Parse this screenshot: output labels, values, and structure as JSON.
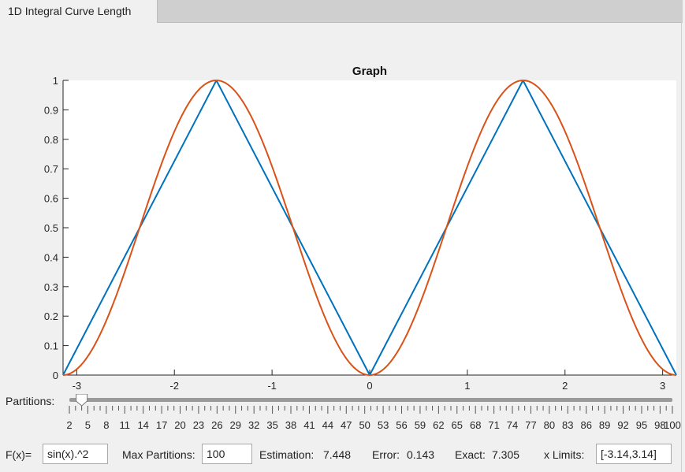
{
  "window": {
    "tab_title": "1D Integral Curve Length"
  },
  "chart_data": {
    "type": "line",
    "title": "Graph",
    "xlim": [
      -3.14,
      3.14
    ],
    "ylim": [
      0,
      1
    ],
    "x_ticks": [
      "-3",
      "-2",
      "-1",
      "0",
      "1",
      "2",
      "3"
    ],
    "y_ticks": [
      "0",
      "0.1",
      "0.2",
      "0.3",
      "0.4",
      "0.5",
      "0.6",
      "0.7",
      "0.8",
      "0.9",
      "1"
    ],
    "grid": false,
    "series": [
      {
        "color": "#0072BD",
        "x": [
          -3.14,
          -1.57,
          0,
          1.57,
          3.14
        ],
        "y": [
          0,
          1,
          0,
          1,
          0
        ]
      },
      {
        "color": "#D95319",
        "function": "sin(x).^2",
        "x": [
          -3.14,
          -2.75,
          -2.36,
          -1.96,
          -1.57,
          -1.18,
          -0.79,
          -0.39,
          0,
          0.39,
          0.79,
          1.18,
          1.57,
          1.96,
          2.36,
          2.75,
          3.14
        ],
        "y": [
          0,
          0.146,
          0.5,
          0.854,
          1,
          0.854,
          0.5,
          0.146,
          0,
          0.146,
          0.5,
          0.854,
          1,
          0.854,
          0.5,
          0.146,
          0
        ]
      }
    ]
  },
  "partitions": {
    "label": "Partitions:",
    "value": 4,
    "min": 2,
    "max": 100,
    "tick_labels": [
      "2",
      "5",
      "8",
      "11",
      "14",
      "17",
      "20",
      "23",
      "26",
      "29",
      "32",
      "35",
      "38",
      "41",
      "44",
      "47",
      "50",
      "53",
      "56",
      "59",
      "62",
      "65",
      "68",
      "71",
      "74",
      "77",
      "80",
      "83",
      "86",
      "89",
      "92",
      "95",
      "98",
      "100"
    ]
  },
  "controls": {
    "fx_label": "F(x)=",
    "fx_value": "sin(x).^2",
    "max_partitions_label": "Max Partitions:",
    "max_partitions_value": "100",
    "estimation_label": "Estimation:",
    "estimation_value": "7.448",
    "error_label": "Error:",
    "error_value": "0.143",
    "exact_label": "Exact:",
    "exact_value": "7.305",
    "xlimits_label": "x Limits:",
    "xlimits_value": "[-3.14,3.14]"
  }
}
